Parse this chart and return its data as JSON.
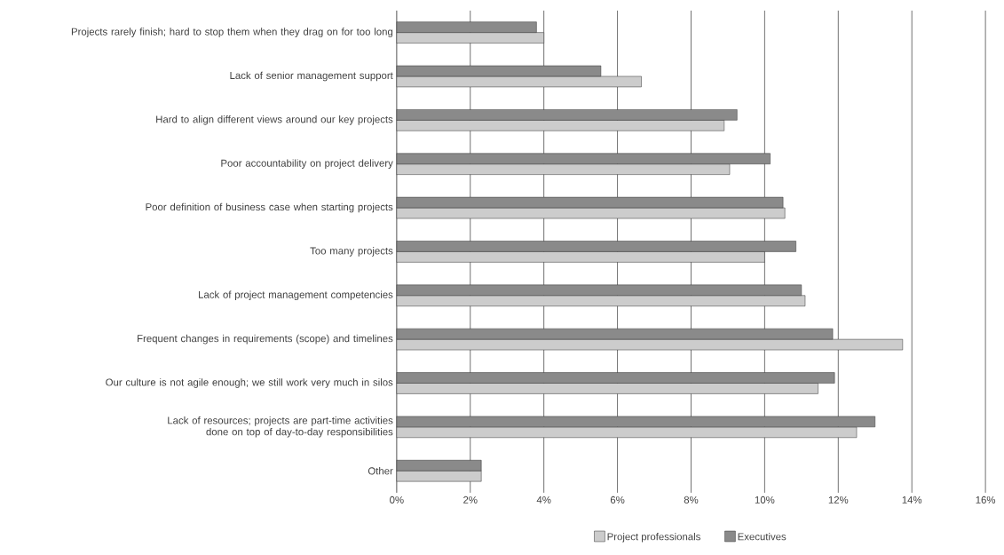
{
  "chart_data": {
    "type": "bar",
    "orientation": "horizontal",
    "categories": [
      "Projects rarely finish; hard to stop them when they drag on for too long",
      "Lack of senior management support",
      "Hard to align different views around our key projects",
      "Poor accountability on project delivery",
      "Poor definition of business case when starting projects",
      "Too many projects",
      "Lack of project management competencies",
      "Frequent changes in requirements (scope) and timelines",
      "Our culture is not agile enough; we still work very much in silos",
      "Lack of resources; projects are part-time activities done on top of day-to-day responsibilities",
      "Other"
    ],
    "series": [
      {
        "name": "Project professionals",
        "color": "#cccccc",
        "values": [
          4.0,
          6.65,
          8.9,
          9.05,
          10.55,
          10.0,
          11.1,
          13.75,
          11.45,
          12.5,
          2.3
        ]
      },
      {
        "name": "Executives",
        "color": "#8a8a8a",
        "values": [
          3.8,
          5.55,
          9.25,
          10.15,
          10.5,
          10.85,
          11.0,
          11.85,
          11.9,
          13.0,
          2.3
        ]
      }
    ],
    "xlim": [
      0,
      16
    ],
    "xticks": [
      {
        "value": 0,
        "label": "0%"
      },
      {
        "value": 2,
        "label": "2%"
      },
      {
        "value": 4,
        "label": "4%"
      },
      {
        "value": 6,
        "label": "6%"
      },
      {
        "value": 8,
        "label": "8%"
      },
      {
        "value": 10,
        "label": "10%"
      },
      {
        "value": 12,
        "label": "12%"
      },
      {
        "value": 14,
        "label": "14%"
      },
      {
        "value": 16,
        "label": "16%"
      }
    ],
    "grid": "x",
    "legend": "bottom"
  }
}
